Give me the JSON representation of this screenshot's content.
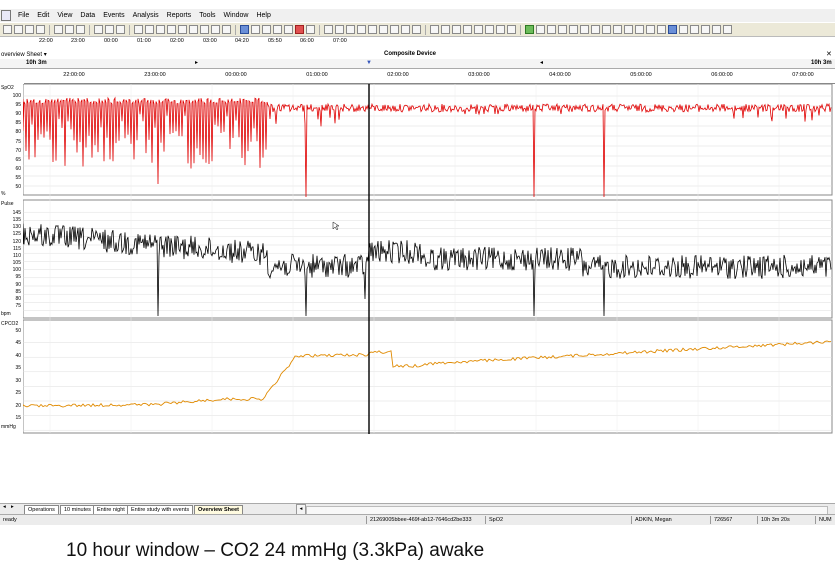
{
  "menu": {
    "items": [
      "File",
      "Edit",
      "View",
      "Data",
      "Events",
      "Analysis",
      "Reports",
      "Tools",
      "Window",
      "Help"
    ]
  },
  "toolbar_times": [
    "22:00",
    "23:00",
    "00:00",
    "01:00",
    "02:00",
    "03:00",
    "04:20",
    "05:50",
    "06:00",
    "07:00"
  ],
  "sheet": {
    "name": "overview Sheet",
    "device": "Composite Device",
    "duration_left": "10h 3m",
    "duration_right": "10h 3m"
  },
  "time_axis": [
    "22:00:00",
    "23:00:00",
    "00:00:00",
    "01:00:00",
    "02:00:00",
    "03:00:00",
    "04:00:00",
    "05:00:00",
    "06:00:00",
    "07:00:00"
  ],
  "tracks": {
    "spo2": {
      "label": "SpO2",
      "unit": "%",
      "ticks": [
        "100",
        "95",
        "90",
        "85",
        "80",
        "75",
        "70",
        "65",
        "60",
        "55",
        "50"
      ],
      "color": "#e00000"
    },
    "pulse": {
      "label": "Pulse",
      "unit": "bpm",
      "ticks": [
        "145",
        "135",
        "130",
        "125",
        "120",
        "115",
        "110",
        "105",
        "100",
        "95",
        "90",
        "85",
        "80",
        "75"
      ],
      "color": "#000000"
    },
    "co2": {
      "label": "CPCO2",
      "unit": "mmHg",
      "ticks": [
        "50",
        "45",
        "40",
        "35",
        "30",
        "25",
        "20",
        "15"
      ],
      "color": "#e08a00"
    }
  },
  "bottom_tabs": [
    "Operations",
    "10 minutes",
    "Entire night",
    "Entire study with events",
    "Overview Sheet"
  ],
  "status": {
    "ready": "ready",
    "record_id": "21269005bbee-469f-ab12-7646cd2be333",
    "channel": "SpO2",
    "patient": "ADKIN, Megan",
    "number": "726567",
    "elapsed": "10h 3m 20s",
    "num": "NUM"
  },
  "caption": "10 hour window – CO2 24 mmHg (3.3kPa) awake"
}
